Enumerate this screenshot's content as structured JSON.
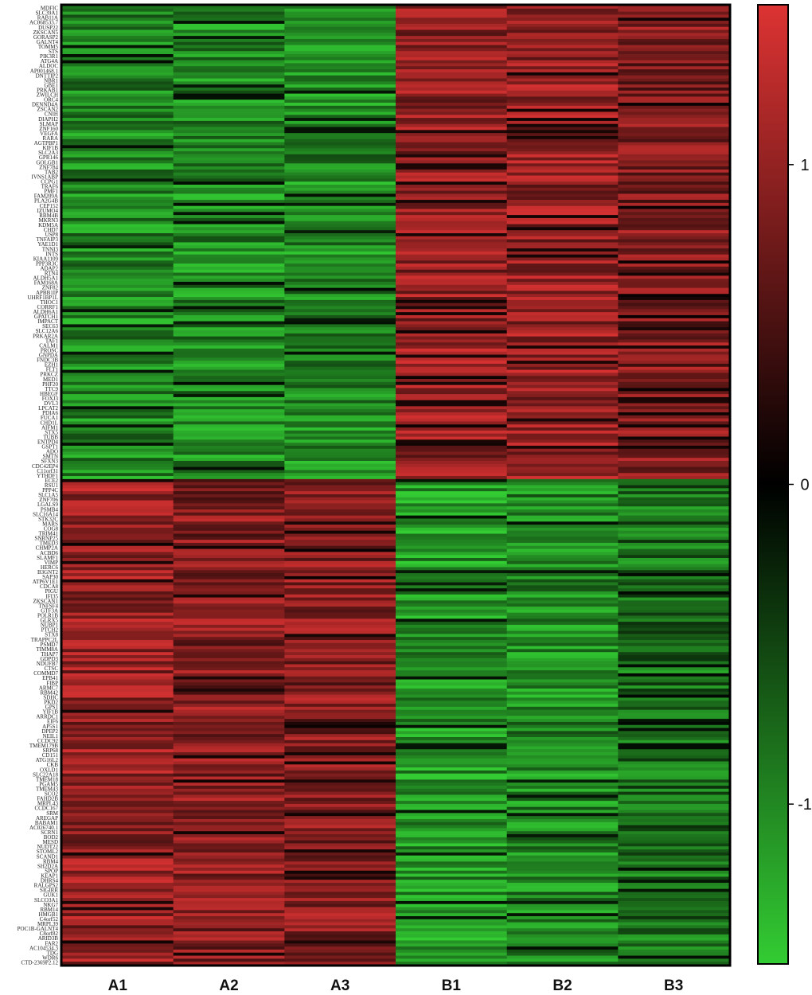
{
  "chart_data": {
    "type": "heatmap",
    "columns": [
      "A1",
      "A2",
      "A3",
      "B1",
      "B2",
      "B3"
    ],
    "row_labels": [
      "MDFIC",
      "SLC39A1",
      "RAB11A",
      "AC068533.7",
      "DUSP22",
      "ZKSCAN5",
      "GORASP2",
      "GALNT4",
      "TOMM5",
      "STS",
      "PIK3R1",
      "ATG4A",
      "ALDOC",
      "AP001468.1",
      "DNTTIP2",
      "NBR1",
      "GBE1",
      "PRKAB1",
      "ZWILCH",
      "ORC4",
      "DENND4A",
      "ZSCAN2",
      "CNIH",
      "DIAPH2",
      "SLMAP",
      "ZNF160",
      "VEGFA",
      "RARA",
      "AGTPBP1",
      "KIF1B",
      "SLC2A3",
      "GPR146",
      "GOLGB1",
      "ZNF784",
      "TAB2",
      "IVNS1ABP",
      "CCPG1",
      "TRAF6",
      "PMF1",
      "FAM209A",
      "PLA2G4B",
      "CEP152",
      "IZUMO4",
      "RBM4B",
      "MKRN3",
      "KDM5A",
      "CHD7",
      "USP8",
      "TNFAIP3",
      "YAE1D1",
      "TNNI3",
      "INTS",
      "KIAA1109",
      "PPP3R3C",
      "ADAP2",
      "RTN4",
      "ALDH5A1",
      "FAM168A",
      "ZNF82",
      "APBB1IP",
      "UHRF1BP1L",
      "THOC1",
      "CORRF1",
      "ALDH6A1",
      "GPATCH1",
      "IMPACT",
      "SEC63",
      "SLC12A6",
      "PRKAR2A",
      "TAF1",
      "CALM1",
      "PROSC",
      "GNPDA",
      "FNDC3B",
      "EZH1",
      "FLT1",
      "PRKCZ",
      "MED1",
      "PHF20",
      "TTC9",
      "HBEGF",
      "FOXJ3",
      "DVL3",
      "LPCAT2",
      "PDIA6",
      "FUCA1",
      "CHD1L",
      "AIFM1",
      "STX5",
      "TUBB",
      "ENTPD4",
      "GSPT1",
      "ADO",
      "SMTN",
      "SFXN3",
      "CDC42EP4",
      "C11orf31",
      "YTHDF1",
      "ECE2",
      "RSU1",
      "PPP4C",
      "SLC1A5",
      "ZNF706",
      "LGALS9",
      "PSMB4",
      "SLC16A14",
      "STK32C",
      "MARS",
      "COG8",
      "TRIM41",
      "SNRNP25",
      "TMED3",
      "CHMP2A",
      "ACBD6",
      "SLAMF1",
      "VIMP",
      "HERC6",
      "B3GNT2",
      "SAP30",
      "ATP6V1E1",
      "CDCA8",
      "PIGU",
      "IFI35",
      "ZKSCAN1",
      "TNFSF4",
      "GTF3A",
      "POLR1B",
      "GLRX5",
      "NUBP1",
      "PTCH2",
      "STX8",
      "TRAPPC2L",
      "PSMD7",
      "TIMM8A",
      "THAP7",
      "GDPD3",
      "NDUFB7",
      "CTSC",
      "COMMD7",
      "EPB41",
      "FIBP",
      "ARMC7",
      "RBM42",
      "SDHC",
      "PKD2",
      "GPS1",
      "YIF1B",
      "ARRDC1",
      "EIF6",
      "AP5S1",
      "DPEP2",
      "NEIL1",
      "CCDC92",
      "TMEM179B",
      "SRP68",
      "CD151",
      "ATG16L2",
      "CKB",
      "OXLD1",
      "SLC22A18",
      "TMEM18",
      "PGAM5",
      "TMEM43",
      "SCO2",
      "FAHD2B",
      "MRPL43",
      "CCDC167",
      "SRM",
      "AREGAP",
      "BABAM1",
      "AC026740.1",
      "SCRN1",
      "BOD2",
      "MESD",
      "NUDT22",
      "STOML2",
      "SCAND1",
      "RBM4",
      "SH2D2A",
      "SPOP",
      "KEAP1",
      "DHRS4",
      "RALGPS2",
      "SIGIRR",
      "GUK1",
      "SLCO3A1",
      "NKG7",
      "RBM14",
      "HMGB1",
      "C4orf52",
      "MRPL39",
      "POC1B-GALNT4",
      "C8orf82",
      "ARID3B",
      "FAR2",
      "AC104534.3",
      "TDG",
      "WDR6",
      "CTD-2369P2.12"
    ],
    "value_range": [
      -1.5,
      1.5
    ],
    "color_scale": {
      "low": "#33cc33",
      "mid": "#000000",
      "high": "#dd3333"
    },
    "legend_ticks": [
      "1",
      "0",
      "-1"
    ],
    "legend_tick_values": [
      1,
      0,
      -1
    ],
    "row_count": 316,
    "blocks": [
      {
        "rows": "1-156",
        "mean_values": [
          -1.0,
          -1.0,
          -1.0,
          1.0,
          1.0,
          0.85
        ]
      },
      {
        "rows": "157-316",
        "mean_values": [
          1.0,
          0.9,
          0.9,
          -1.1,
          -1.0,
          -0.8
        ]
      }
    ]
  }
}
